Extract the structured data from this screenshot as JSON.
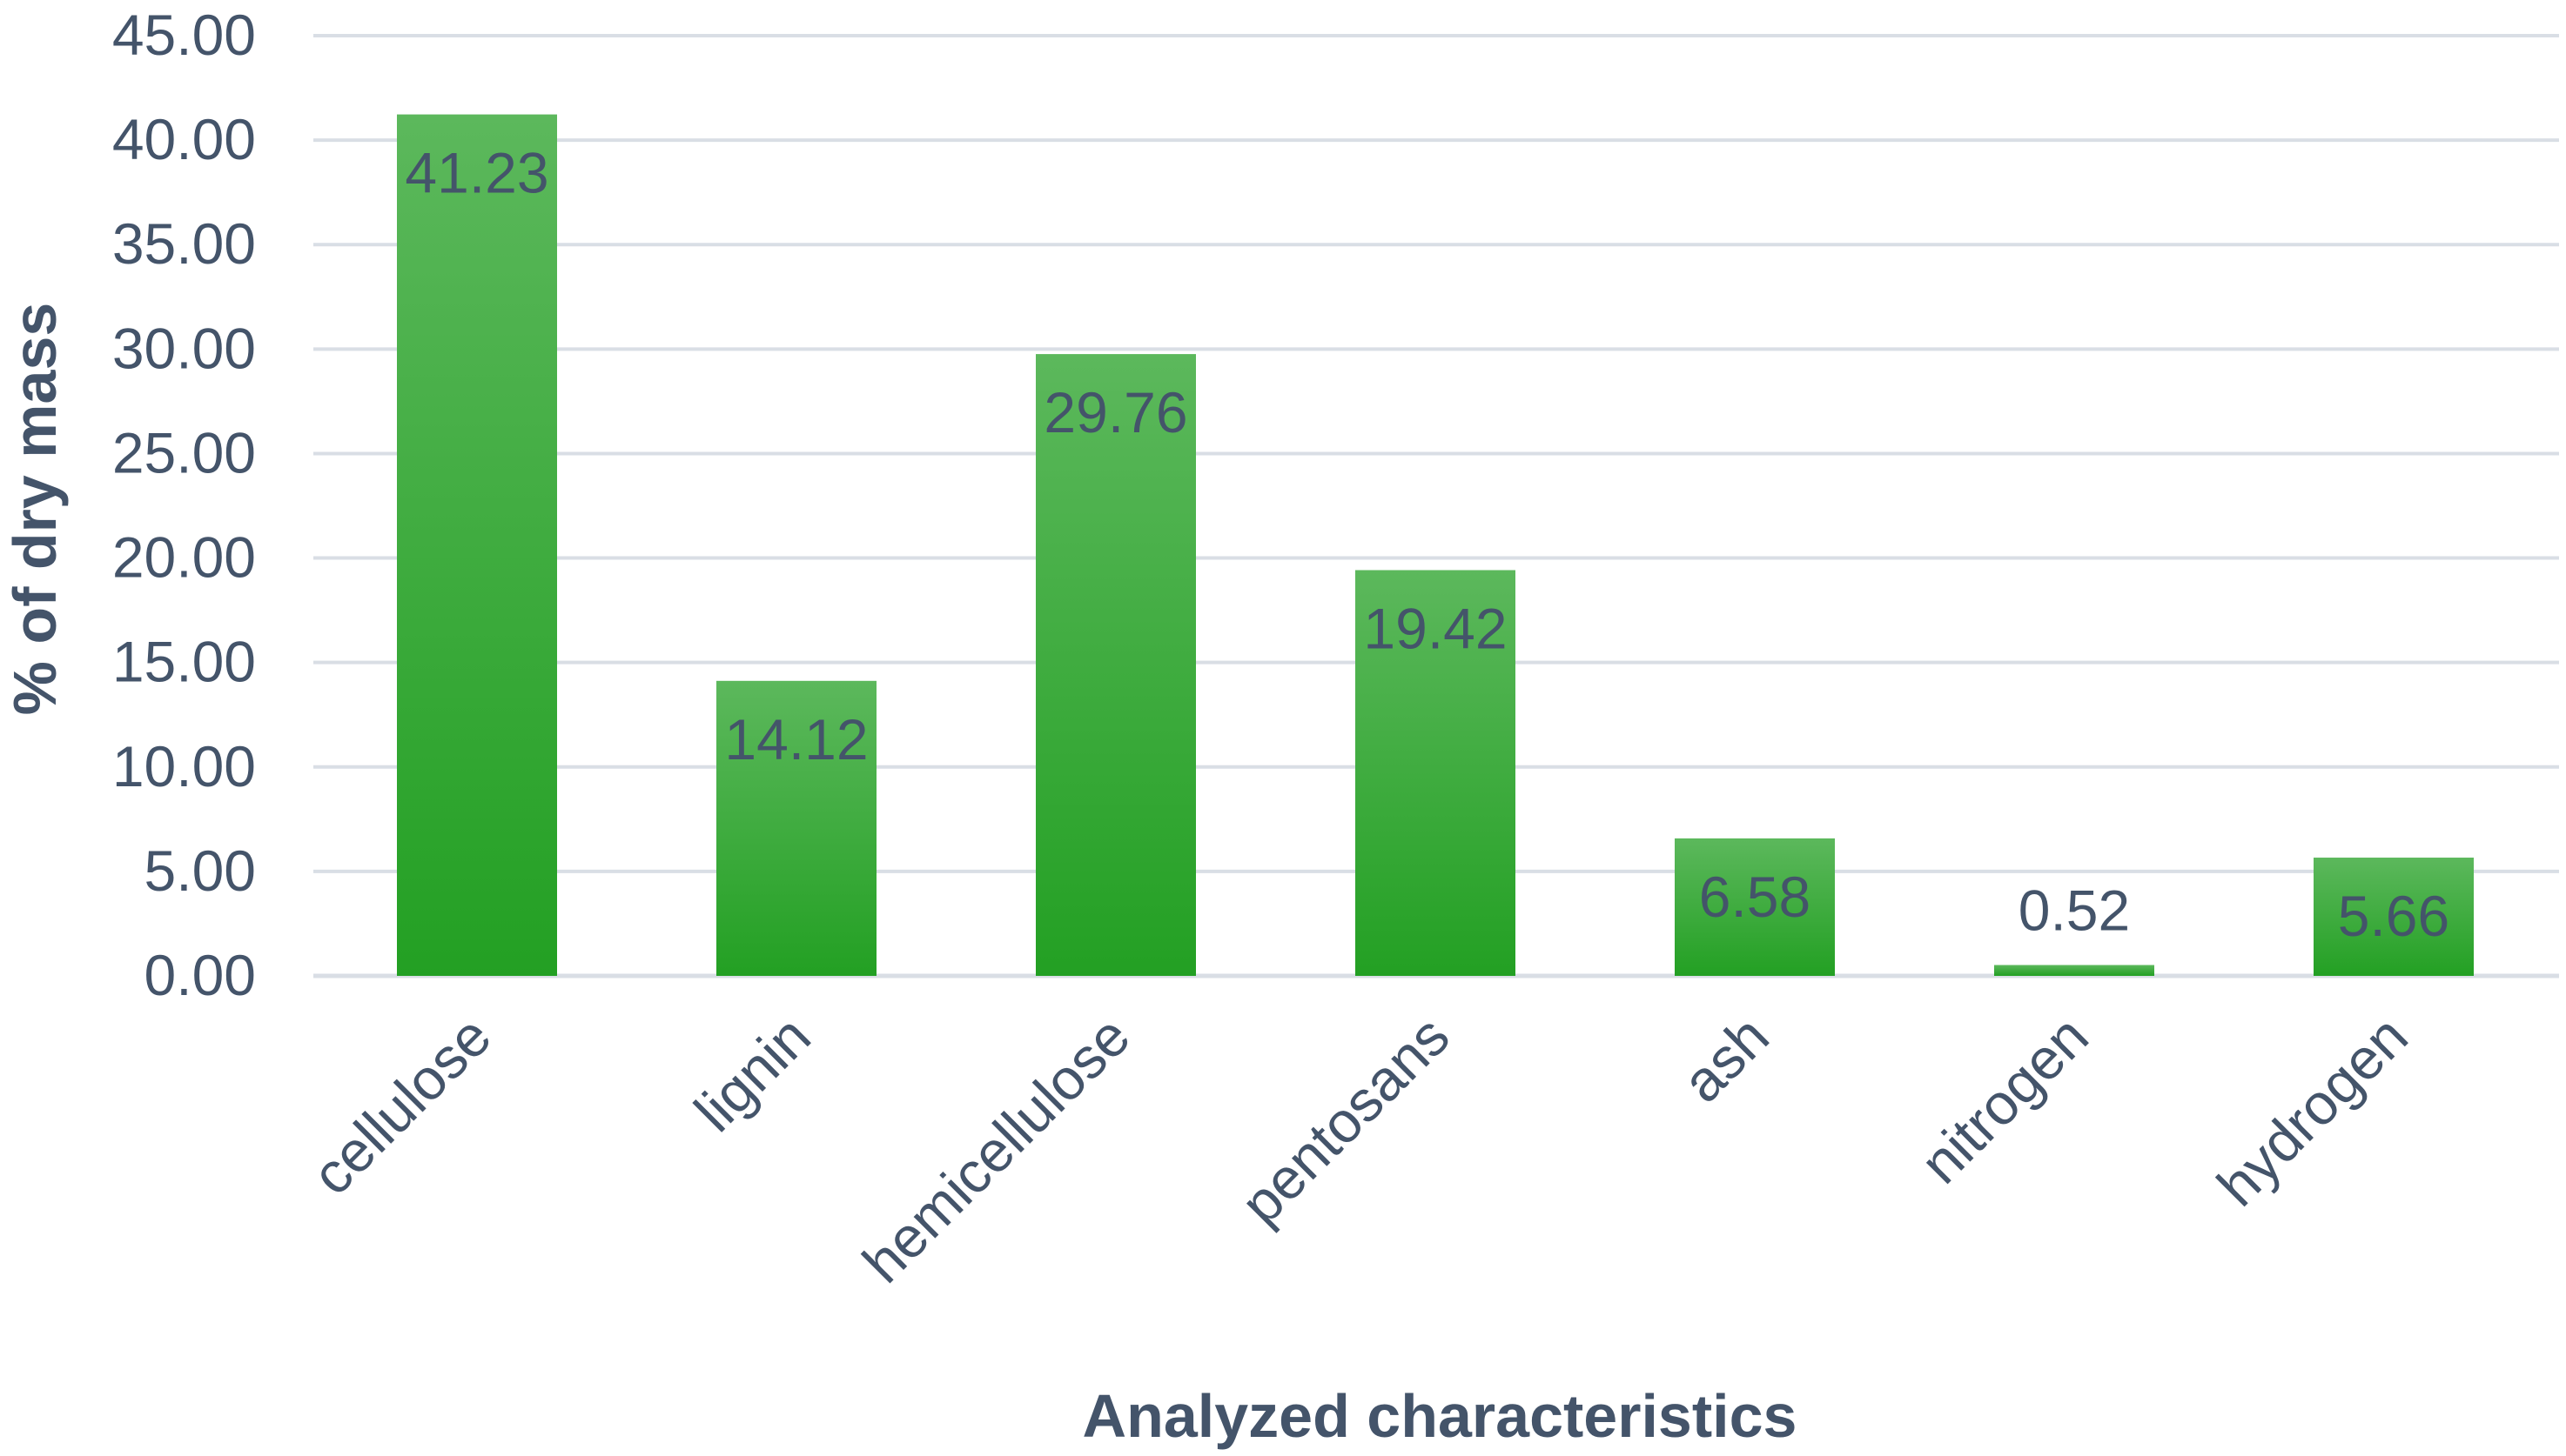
{
  "chart_data": {
    "type": "bar",
    "title": "",
    "xlabel": "Analyzed characteristics",
    "ylabel": "% of dry mass",
    "categories": [
      "cellulose",
      "lignin",
      "hemicellulose",
      "pentosans",
      "ash",
      "nitrogen",
      "hydrogen"
    ],
    "values": [
      41.23,
      14.12,
      29.76,
      19.42,
      6.58,
      0.52,
      5.66
    ],
    "data_labels": [
      "41.23",
      "14.12",
      "29.76",
      "19.42",
      "6.58",
      "0.52",
      "5.66"
    ],
    "ylim": [
      0,
      45
    ],
    "y_ticks": [
      0,
      5,
      10,
      15,
      20,
      25,
      30,
      35,
      40,
      45
    ],
    "y_tick_labels": [
      "0.00",
      "5.00",
      "10.00",
      "15.00",
      "20.00",
      "25.00",
      "30.00",
      "35.00",
      "40.00",
      "45.00"
    ],
    "grid": true,
    "legend": "none",
    "colors": {
      "bar_top": "#5cb85c",
      "bar_bottom": "#23a023",
      "grid": "#d9dee5",
      "text": "#44546a"
    }
  }
}
